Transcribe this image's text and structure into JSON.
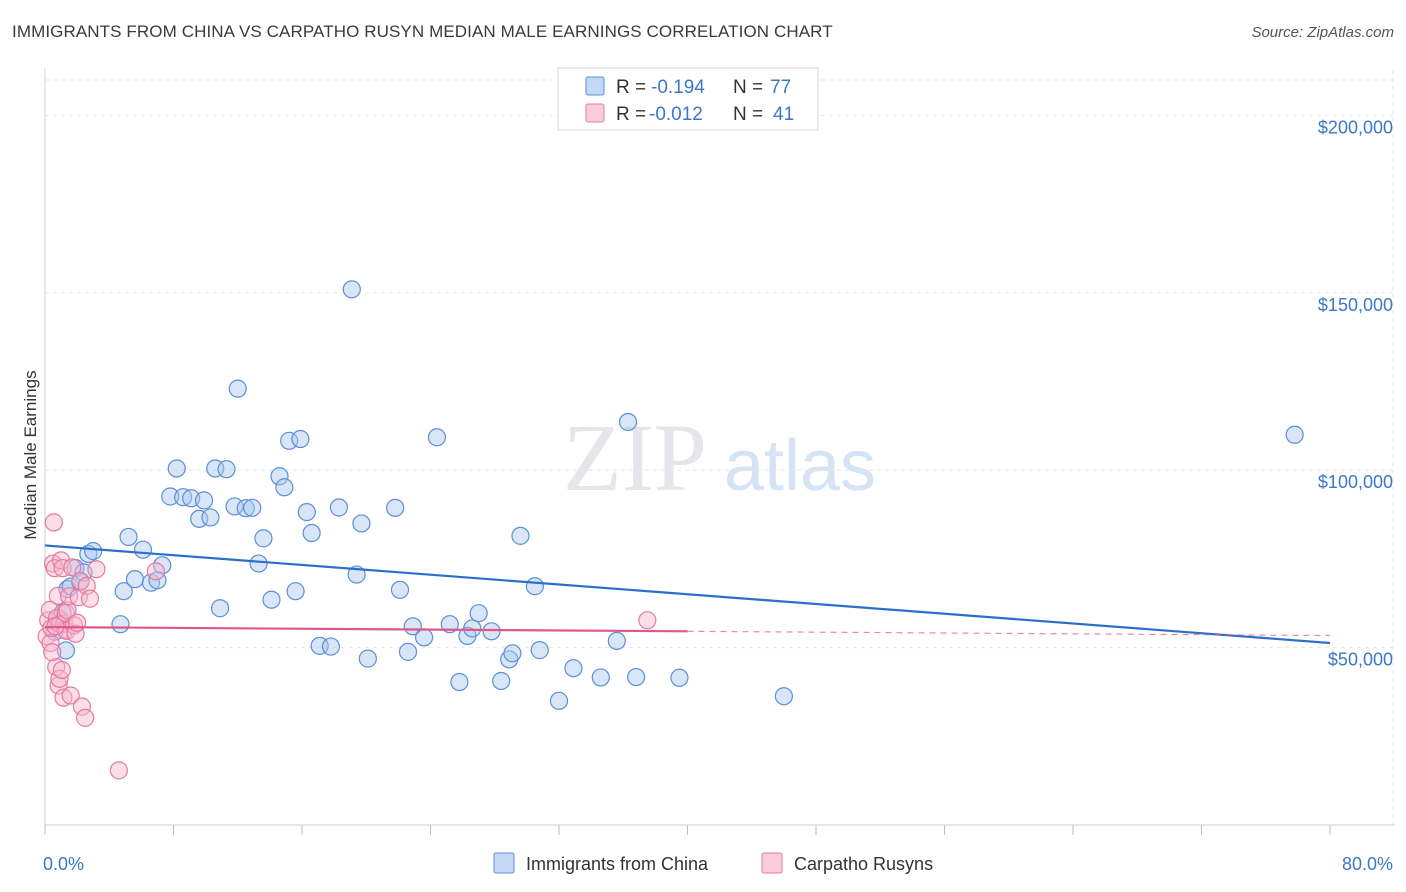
{
  "title": "IMMIGRANTS FROM CHINA VS CARPATHO RUSYN MEDIAN MALE EARNINGS CORRELATION CHART",
  "source": "Source: ZipAtlas.com",
  "watermark": {
    "zip": "ZIP",
    "atlas": "atlas"
  },
  "colors": {
    "china_fill": "#a9c8f0",
    "china_stroke": "#5b8fd6",
    "china_line": "#2a6fcc",
    "rusyn_fill": "#f6b8cc",
    "rusyn_stroke": "#e57aa0",
    "rusyn_line": "#e0558a",
    "grid": "#e3e6ea",
    "tick_label": "#3b78c6"
  },
  "legend": {
    "rows": [
      {
        "r_label": "R =",
        "r_value": "-0.194",
        "n_label": "N =",
        "n_value": "77"
      },
      {
        "r_label": "R =",
        "r_value": "-0.012",
        "n_label": "N =",
        "n_value": "41"
      }
    ]
  },
  "chart_data": {
    "type": "scatter",
    "title": "IMMIGRANTS FROM CHINA VS CARPATHO RUSYN MEDIAN MALE EARNINGS CORRELATION CHART",
    "xlabel": "",
    "ylabel": "Median Male Earnings",
    "xlim": [
      0,
      80
    ],
    "ylim": [
      0,
      210000
    ],
    "x_tick_labels": [
      {
        "value": 0,
        "label": "0.0%"
      },
      {
        "value": 80,
        "label": "80.0%"
      }
    ],
    "y_ticks": [
      {
        "value": 50000,
        "label": "$50,000"
      },
      {
        "value": 100000,
        "label": "$100,000"
      },
      {
        "value": 150000,
        "label": "$150,000"
      },
      {
        "value": 200000,
        "label": "$200,000"
      }
    ],
    "grid": true,
    "legend_placement": "top-center",
    "series": [
      {
        "name": "Immigrants from China",
        "trend": {
          "x": [
            0,
            80
          ],
          "y": [
            78800,
            51300
          ],
          "solid_to": 80
        },
        "points": [
          [
            0.6,
            54500
          ],
          [
            0.9,
            58200
          ],
          [
            1.1,
            59800
          ],
          [
            1.4,
            66500
          ],
          [
            1.6,
            67200
          ],
          [
            1.9,
            72400
          ],
          [
            2.2,
            68500
          ],
          [
            2.4,
            71200
          ],
          [
            2.7,
            76400
          ],
          [
            3.0,
            77200
          ],
          [
            4.7,
            56600
          ],
          [
            4.9,
            65900
          ],
          [
            5.2,
            81200
          ],
          [
            5.6,
            69300
          ],
          [
            6.1,
            77600
          ],
          [
            6.6,
            68300
          ],
          [
            7.3,
            73200
          ],
          [
            7.8,
            92600
          ],
          [
            8.2,
            100500
          ],
          [
            8.6,
            92400
          ],
          [
            9.1,
            92100
          ],
          [
            9.6,
            86300
          ],
          [
            9.9,
            91500
          ],
          [
            10.3,
            86700
          ],
          [
            10.6,
            100500
          ],
          [
            10.9,
            61100
          ],
          [
            11.3,
            100300
          ],
          [
            11.8,
            89800
          ],
          [
            12.0,
            123000
          ],
          [
            12.5,
            89300
          ],
          [
            12.9,
            89400
          ],
          [
            13.3,
            73700
          ],
          [
            13.6,
            80800
          ],
          [
            14.1,
            63500
          ],
          [
            14.6,
            98300
          ],
          [
            14.9,
            95200
          ],
          [
            15.2,
            108300
          ],
          [
            15.6,
            65900
          ],
          [
            15.9,
            108800
          ],
          [
            16.3,
            88200
          ],
          [
            16.6,
            82300
          ],
          [
            17.1,
            50500
          ],
          [
            17.8,
            50300
          ],
          [
            18.3,
            89500
          ],
          [
            19.1,
            151000
          ],
          [
            19.4,
            70600
          ],
          [
            19.7,
            85000
          ],
          [
            20.1,
            46900
          ],
          [
            21.8,
            89400
          ],
          [
            22.1,
            66300
          ],
          [
            22.6,
            48800
          ],
          [
            22.9,
            56000
          ],
          [
            23.6,
            52900
          ],
          [
            24.4,
            109300
          ],
          [
            25.2,
            56600
          ],
          [
            25.8,
            40300
          ],
          [
            26.3,
            53300
          ],
          [
            26.6,
            55400
          ],
          [
            27.0,
            59700
          ],
          [
            27.8,
            54600
          ],
          [
            28.4,
            40600
          ],
          [
            28.9,
            46700
          ],
          [
            29.1,
            48400
          ],
          [
            29.6,
            81500
          ],
          [
            30.5,
            67300
          ],
          [
            30.8,
            49300
          ],
          [
            32.0,
            35000
          ],
          [
            32.9,
            44200
          ],
          [
            34.6,
            41600
          ],
          [
            35.6,
            51900
          ],
          [
            36.3,
            113600
          ],
          [
            36.8,
            41700
          ],
          [
            39.5,
            41500
          ],
          [
            46.0,
            36300
          ],
          [
            77.8,
            110000
          ],
          [
            1.3,
            49200
          ],
          [
            7.0,
            69000
          ]
        ]
      },
      {
        "name": "Carpatho Rusyns",
        "trend": {
          "x": [
            0,
            80
          ],
          "y": [
            55800,
            53400
          ],
          "solid_to": 40
        },
        "points": [
          [
            0.1,
            53200
          ],
          [
            0.2,
            57700
          ],
          [
            0.3,
            60600
          ],
          [
            0.35,
            51300
          ],
          [
            0.4,
            55500
          ],
          [
            0.5,
            73700
          ],
          [
            0.55,
            85300
          ],
          [
            0.6,
            72400
          ],
          [
            0.7,
            44500
          ],
          [
            0.75,
            58400
          ],
          [
            0.8,
            64600
          ],
          [
            0.85,
            39300
          ],
          [
            0.9,
            41200
          ],
          [
            0.95,
            56600
          ],
          [
            1.0,
            74600
          ],
          [
            1.05,
            43700
          ],
          [
            1.1,
            72400
          ],
          [
            1.15,
            35900
          ],
          [
            1.2,
            56700
          ],
          [
            1.25,
            55100
          ],
          [
            1.3,
            59700
          ],
          [
            1.35,
            54700
          ],
          [
            1.4,
            60500
          ],
          [
            1.5,
            64500
          ],
          [
            1.6,
            36500
          ],
          [
            1.7,
            72600
          ],
          [
            1.8,
            56300
          ],
          [
            1.9,
            53900
          ],
          [
            2.0,
            57000
          ],
          [
            2.1,
            64200
          ],
          [
            2.2,
            68800
          ],
          [
            2.3,
            33400
          ],
          [
            2.5,
            30200
          ],
          [
            2.6,
            67400
          ],
          [
            2.8,
            63800
          ],
          [
            3.2,
            72100
          ],
          [
            4.6,
            15400
          ],
          [
            6.9,
            71500
          ],
          [
            37.5,
            57700
          ],
          [
            0.45,
            48700
          ],
          [
            0.65,
            56000
          ]
        ]
      }
    ]
  }
}
